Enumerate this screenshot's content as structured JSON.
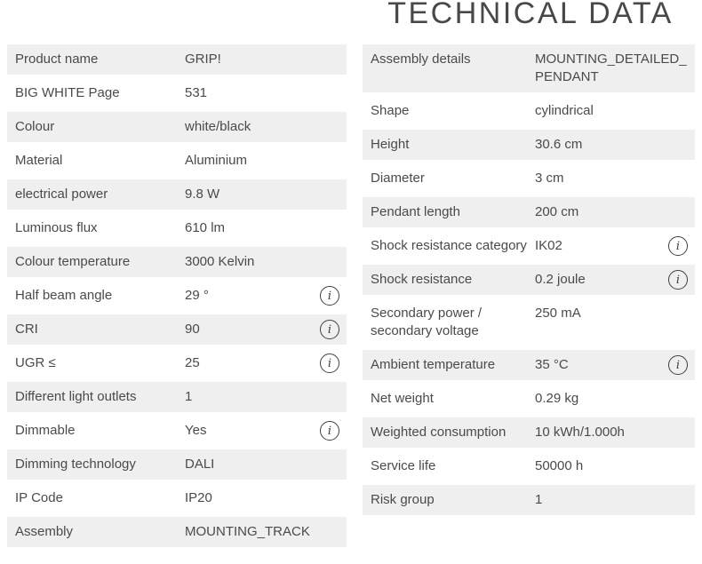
{
  "title": "TECHNICAL DATA",
  "colors": {
    "row_alt_bg": "#efefef",
    "text": "#4a4a4a",
    "title": "#48484a",
    "icon": "#3e3e3e"
  },
  "info_icon_glyph": "i",
  "left_table": {
    "rows": [
      {
        "label": "Product name",
        "value": "GRIP!",
        "info": false
      },
      {
        "label": "BIG WHITE Page",
        "value": "531",
        "info": false
      },
      {
        "label": "Colour",
        "value": "white/black",
        "info": false
      },
      {
        "label": "Material",
        "value": "Aluminium",
        "info": false
      },
      {
        "label": "electrical power",
        "value": "9.8 W",
        "info": false
      },
      {
        "label": "Luminous flux",
        "value": "610 lm",
        "info": false
      },
      {
        "label": "Colour temperature",
        "value": "3000 Kelvin",
        "info": false
      },
      {
        "label": "Half beam angle",
        "value": "29 °",
        "info": true
      },
      {
        "label": "CRI",
        "value": "90",
        "info": true
      },
      {
        "label": "UGR ≤",
        "value": "25",
        "info": true
      },
      {
        "label": "Different light outlets",
        "value": "1",
        "info": false
      },
      {
        "label": "Dimmable",
        "value": "Yes",
        "info": true
      },
      {
        "label": "Dimming technology",
        "value": "DALI",
        "info": false
      },
      {
        "label": "IP Code",
        "value": "IP20",
        "info": false
      },
      {
        "label": "Assembly",
        "value": "MOUNTING_TRACK",
        "info": false
      }
    ]
  },
  "right_table": {
    "rows": [
      {
        "label": "Assembly details",
        "value": "MOUNTING_DETAILED_PENDANT",
        "info": false
      },
      {
        "label": "Shape",
        "value": "cylindrical",
        "info": false
      },
      {
        "label": "Height",
        "value": "30.6 cm",
        "info": false
      },
      {
        "label": "Diameter",
        "value": "3 cm",
        "info": false
      },
      {
        "label": "Pendant length",
        "value": "200 cm",
        "info": false
      },
      {
        "label": "Shock resistance category",
        "value": "IK02",
        "info": true
      },
      {
        "label": "Shock resistance",
        "value": "0.2 joule",
        "info": true
      },
      {
        "label": "Secondary power / secondary voltage",
        "value": "250 mA",
        "info": false
      },
      {
        "label": "Ambient temperature",
        "value": "35 °C",
        "info": true
      },
      {
        "label": "Net weight",
        "value": "0.29 kg",
        "info": false
      },
      {
        "label": "Weighted consumption",
        "value": "10 kWh/1.000h",
        "info": false
      },
      {
        "label": "Service life",
        "value": "50000 h",
        "info": false
      },
      {
        "label": "Risk group",
        "value": "1",
        "info": false
      }
    ]
  }
}
